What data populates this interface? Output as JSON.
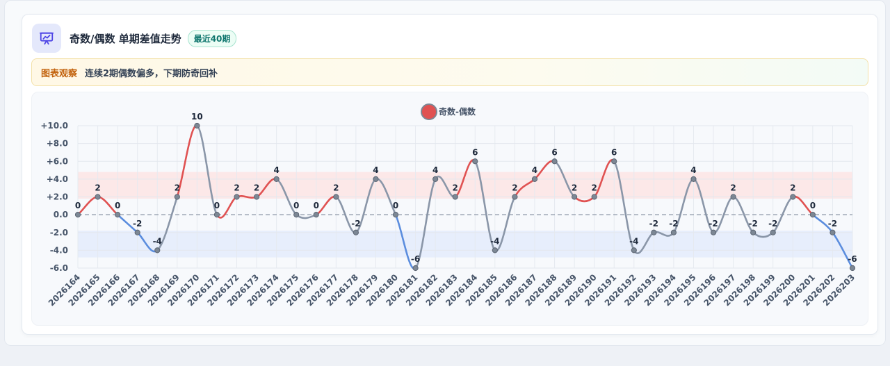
{
  "header": {
    "title": "奇数/偶数 单期差值走势",
    "badge": "最近40期",
    "icon": "presentation-chart-icon"
  },
  "note": {
    "tag": "图表观察",
    "text": "连续2期偶数偏多，下期防奇回补"
  },
  "colors": {
    "odd_bias": "#e05252",
    "even_bias": "#5b8dde",
    "neutral": "#8a96a8",
    "accent": "#4f46e5"
  },
  "chart_data": {
    "type": "line",
    "legend": [
      "奇数-偶数"
    ],
    "legend_position": "top-center",
    "categories": [
      "2026164",
      "2026165",
      "2026166",
      "2026167",
      "2026168",
      "2026169",
      "2026170",
      "2026171",
      "2026172",
      "2026173",
      "2026174",
      "2026175",
      "2026176",
      "2026177",
      "2026178",
      "2026179",
      "2026180",
      "2026181",
      "2026182",
      "2026183",
      "2026184",
      "2026185",
      "2026186",
      "2026187",
      "2026188",
      "2026189",
      "2026190",
      "2026191",
      "2026192",
      "2026193",
      "2026194",
      "2026195",
      "2026196",
      "2026197",
      "2026198",
      "2026199",
      "2026200",
      "2026201",
      "2026202",
      "2026203"
    ],
    "series": [
      {
        "name": "奇数-偶数",
        "values": [
          0,
          2,
          0,
          -2,
          -4,
          2,
          10,
          0,
          2,
          2,
          4,
          0,
          0,
          2,
          -2,
          4,
          0,
          -6,
          4,
          2,
          6,
          -4,
          2,
          4,
          6,
          2,
          2,
          6,
          -4,
          -2,
          -2,
          4,
          -2,
          2,
          -2,
          -2,
          2,
          0,
          -2,
          -6
        ]
      }
    ],
    "ylim": [
      -6,
      10
    ],
    "yticks": [
      -6,
      -4,
      -2,
      0,
      2,
      4,
      6,
      8,
      10
    ],
    "ytick_labels": [
      "-6.0",
      "-4.0",
      "-2.0",
      "0.0",
      "+2.0",
      "+4.0",
      "+6.0",
      "+8.0",
      "+10.0"
    ],
    "bands": [
      {
        "from": 1.8,
        "to": 4.8,
        "color": "#fde2e2"
      },
      {
        "from": -1.8,
        "to": -4.8,
        "color": "#e2eafc"
      }
    ],
    "zero_line": "dashed",
    "grid": true
  }
}
